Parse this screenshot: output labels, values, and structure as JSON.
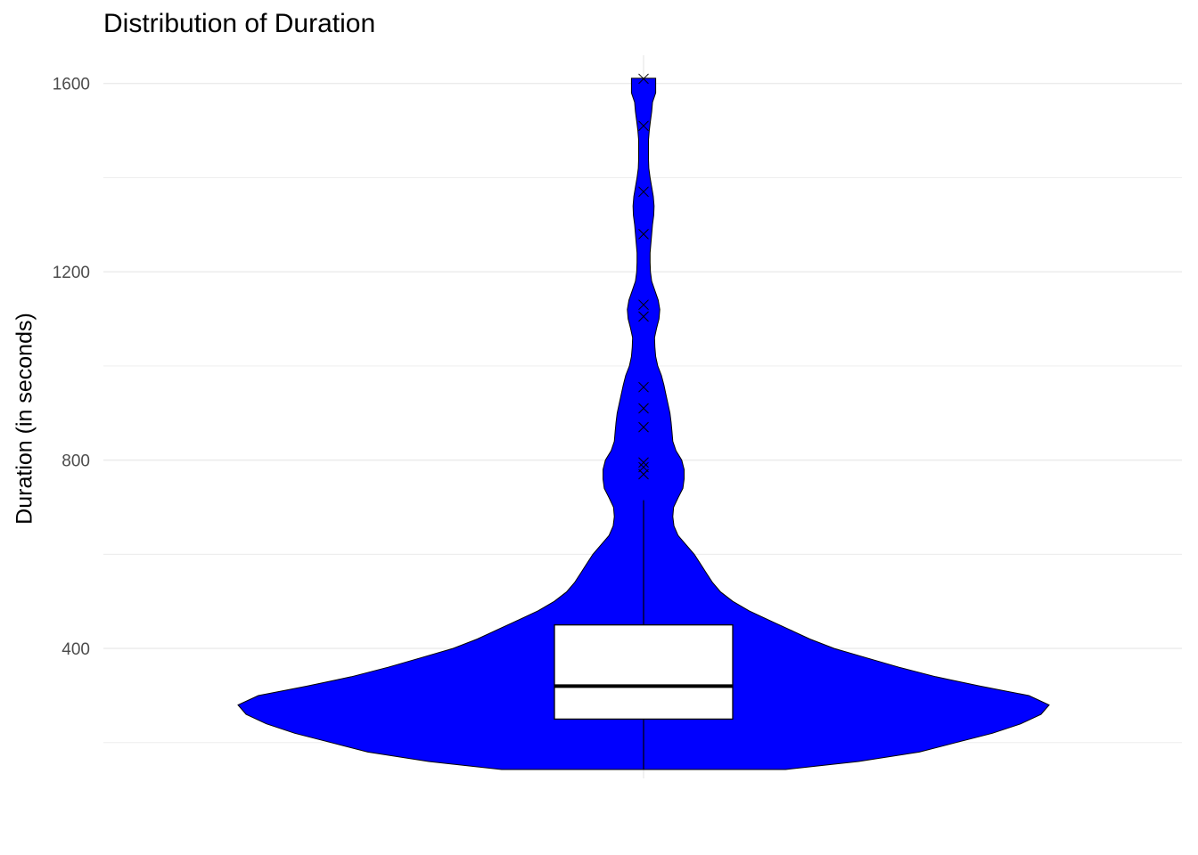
{
  "chart_data": {
    "type": "violin",
    "title": "Distribution of Duration",
    "xlabel": "",
    "ylabel": "Duration (in seconds)",
    "ylim": [
      124,
      1660
    ],
    "y_ticks": [
      400,
      800,
      1200,
      1600
    ],
    "grid": true,
    "colors": {
      "violin_fill": "#0000ff",
      "outline": "#000000",
      "box_fill": "#ffffff",
      "grid": "#ebebeb"
    },
    "violin_density": [
      [
        143,
        0.35
      ],
      [
        160,
        0.53
      ],
      [
        180,
        0.68
      ],
      [
        200,
        0.77
      ],
      [
        220,
        0.86
      ],
      [
        240,
        0.93
      ],
      [
        260,
        0.98
      ],
      [
        280,
        1.0
      ],
      [
        300,
        0.95
      ],
      [
        320,
        0.83
      ],
      [
        340,
        0.72
      ],
      [
        360,
        0.63
      ],
      [
        380,
        0.55
      ],
      [
        400,
        0.47
      ],
      [
        420,
        0.41
      ],
      [
        440,
        0.36
      ],
      [
        460,
        0.31
      ],
      [
        480,
        0.26
      ],
      [
        500,
        0.22
      ],
      [
        520,
        0.19
      ],
      [
        540,
        0.17
      ],
      [
        560,
        0.155
      ],
      [
        580,
        0.14
      ],
      [
        600,
        0.125
      ],
      [
        620,
        0.105
      ],
      [
        640,
        0.085
      ],
      [
        660,
        0.075
      ],
      [
        680,
        0.072
      ],
      [
        700,
        0.074
      ],
      [
        720,
        0.085
      ],
      [
        740,
        0.097
      ],
      [
        760,
        0.1
      ],
      [
        780,
        0.1
      ],
      [
        800,
        0.094
      ],
      [
        820,
        0.08
      ],
      [
        840,
        0.072
      ],
      [
        860,
        0.07
      ],
      [
        880,
        0.068
      ],
      [
        900,
        0.065
      ],
      [
        920,
        0.06
      ],
      [
        940,
        0.055
      ],
      [
        960,
        0.05
      ],
      [
        980,
        0.044
      ],
      [
        1000,
        0.035
      ],
      [
        1020,
        0.03
      ],
      [
        1040,
        0.028
      ],
      [
        1060,
        0.027
      ],
      [
        1080,
        0.032
      ],
      [
        1100,
        0.038
      ],
      [
        1120,
        0.04
      ],
      [
        1140,
        0.036
      ],
      [
        1160,
        0.028
      ],
      [
        1180,
        0.02
      ],
      [
        1200,
        0.017
      ],
      [
        1220,
        0.016
      ],
      [
        1240,
        0.016
      ],
      [
        1260,
        0.018
      ],
      [
        1280,
        0.02
      ],
      [
        1300,
        0.022
      ],
      [
        1320,
        0.025
      ],
      [
        1340,
        0.026
      ],
      [
        1360,
        0.024
      ],
      [
        1380,
        0.02
      ],
      [
        1400,
        0.016
      ],
      [
        1420,
        0.013
      ],
      [
        1440,
        0.012
      ],
      [
        1460,
        0.012
      ],
      [
        1480,
        0.012
      ],
      [
        1500,
        0.014
      ],
      [
        1520,
        0.017
      ],
      [
        1540,
        0.02
      ],
      [
        1560,
        0.022
      ],
      [
        1580,
        0.03
      ],
      [
        1600,
        0.03
      ],
      [
        1611,
        0.03
      ]
    ],
    "box": {
      "q1": 250,
      "median": 320,
      "q3": 450,
      "whisker_low": 143,
      "whisker_high": 715
    },
    "outliers": [
      770,
      785,
      795,
      870,
      910,
      955,
      1105,
      1130,
      1280,
      1370,
      1510,
      1610
    ]
  }
}
